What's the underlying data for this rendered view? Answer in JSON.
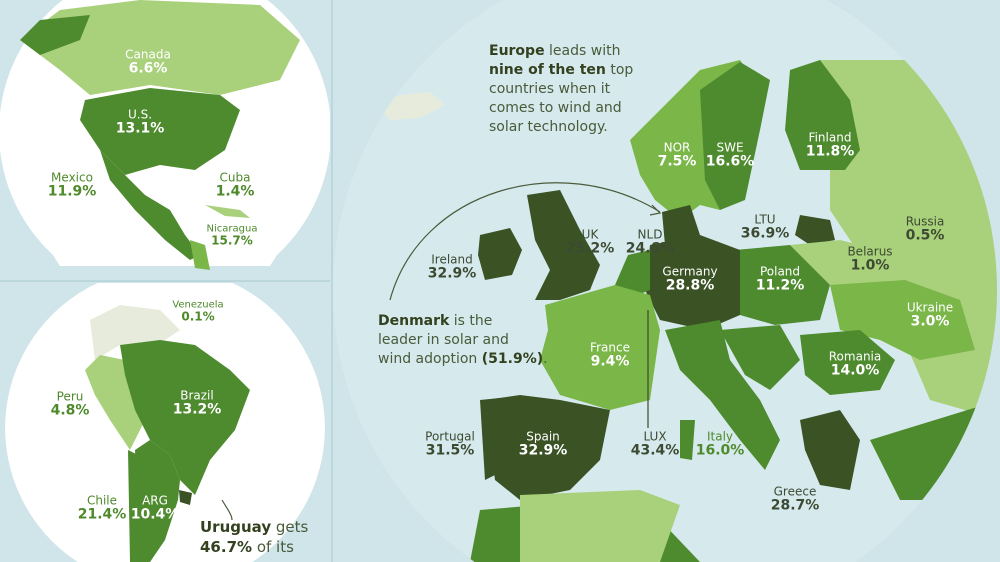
{
  "colors": {
    "background": "#cfe5e9",
    "ocean": "#d6eaee",
    "land_none": "#e6ebdc",
    "darkest": "#3a5224",
    "dark": "#4e8a2e",
    "medium": "#7ab648",
    "light": "#a9d07b",
    "text_dark": "#3d4a32",
    "text_green": "#4e8a2b"
  },
  "labels": [
    {
      "name": "Canada",
      "value": "6.6%"
    },
    {
      "name": "U.S.",
      "value": "13.1%"
    },
    {
      "name": "Mexico",
      "value": "11.9%"
    },
    {
      "name": "Cuba",
      "value": "1.4%"
    },
    {
      "name": "Nicaragua",
      "value": "15.7%"
    },
    {
      "name": "Venezuela",
      "value": "0.1%"
    },
    {
      "name": "Peru",
      "value": "4.8%"
    },
    {
      "name": "Brazil",
      "value": "13.2%"
    },
    {
      "name": "Chile",
      "value": "21.4%"
    },
    {
      "name": "ARG",
      "value": "10.4%"
    },
    {
      "name": "Ireland",
      "value": "32.9%"
    },
    {
      "name": "UK",
      "value": "25.2%"
    },
    {
      "name": "NLD",
      "value": "24.6%"
    },
    {
      "name": "NOR",
      "value": "7.5%"
    },
    {
      "name": "SWE",
      "value": "16.6%"
    },
    {
      "name": "Finland",
      "value": "11.8%"
    },
    {
      "name": "LTU",
      "value": "36.9%"
    },
    {
      "name": "Russia",
      "value": "0.5%"
    },
    {
      "name": "Belarus",
      "value": "1.0%"
    },
    {
      "name": "Germany",
      "value": "28.8%"
    },
    {
      "name": "Poland",
      "value": "11.2%"
    },
    {
      "name": "Ukraine",
      "value": "3.0%"
    },
    {
      "name": "France",
      "value": "9.4%"
    },
    {
      "name": "Romania",
      "value": "14.0%"
    },
    {
      "name": "Portugal",
      "value": "31.5%"
    },
    {
      "name": "Spain",
      "value": "32.9%"
    },
    {
      "name": "LUX",
      "value": "43.4%"
    },
    {
      "name": "Italy",
      "value": "16.0%"
    },
    {
      "name": "Greece",
      "value": "28.7%"
    }
  ],
  "notes": {
    "europe": {
      "b1": "Europe",
      "t1": " leads with",
      "b2": "nine of the ten",
      "t2": " top",
      "t3": "countries when it",
      "t4": "comes to wind and",
      "t5": "solar technology."
    },
    "denmark": {
      "b1": "Denmark",
      "t1": " is the",
      "t2": "leader in solar and",
      "t3": "wind adoption ",
      "b2": "(51.9%)",
      "t4": "."
    },
    "uruguay": {
      "b1": "Uruguay",
      "t1": " gets",
      "b2": "46.7%",
      "t2": " of its"
    }
  }
}
